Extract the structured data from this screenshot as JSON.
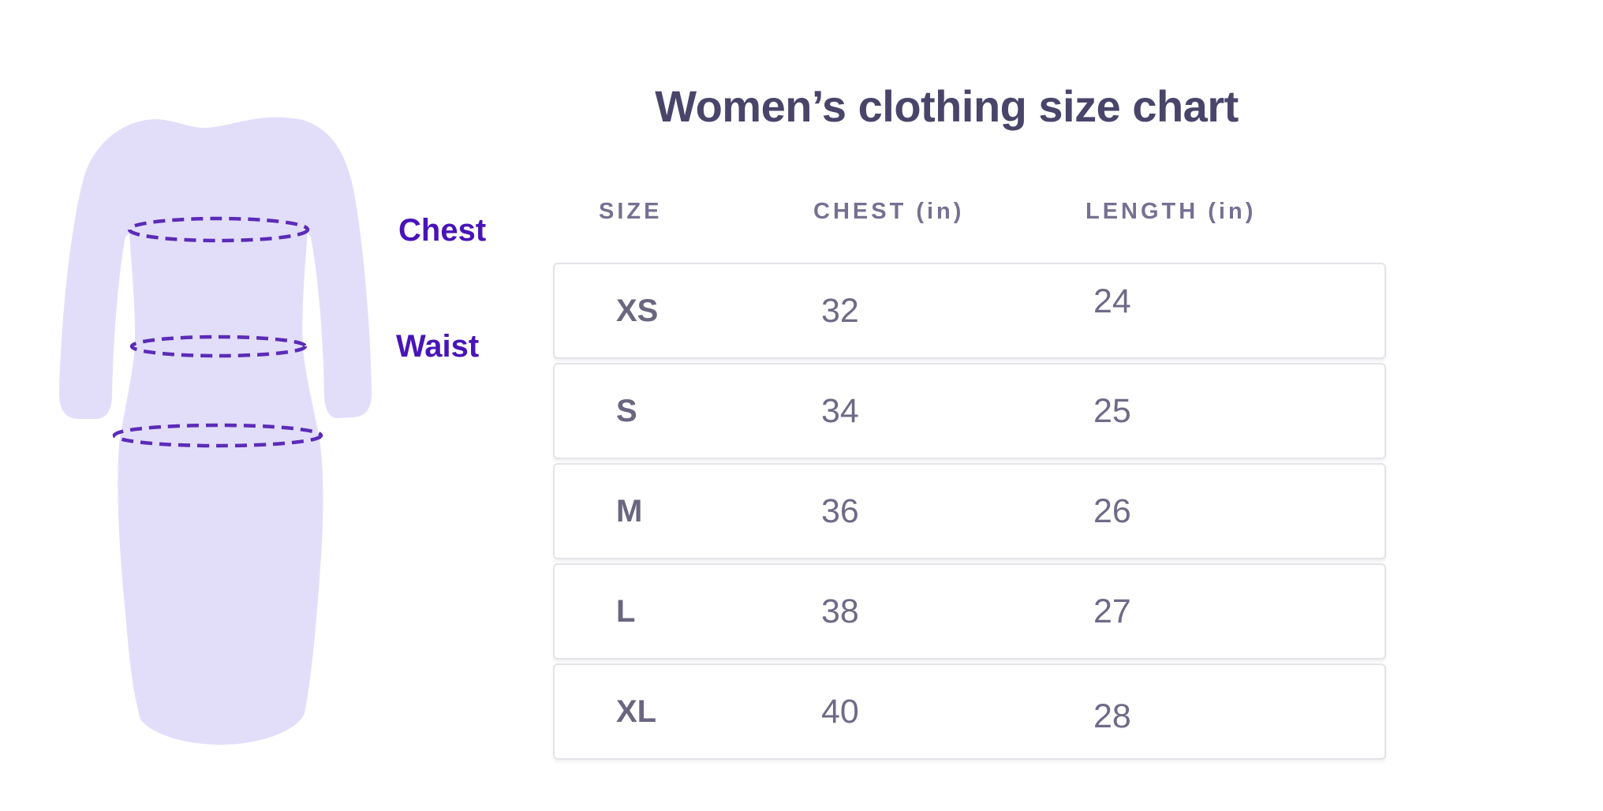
{
  "title": "Women’s clothing size chart",
  "figure": {
    "chest_label": "Chest",
    "waist_label": "Waist"
  },
  "table": {
    "headers": [
      "SIZE",
      "CHEST (in)",
      "LENGTH (in)"
    ],
    "rows": [
      {
        "size": "XS",
        "chest": "32",
        "length": "24"
      },
      {
        "size": "S",
        "chest": "34",
        "length": "25"
      },
      {
        "size": "M",
        "chest": "36",
        "length": "26"
      },
      {
        "size": "L",
        "chest": "38",
        "length": "27"
      },
      {
        "size": "XL",
        "chest": "40",
        "length": "28"
      }
    ]
  },
  "chart_data": {
    "type": "table",
    "title": "Women’s clothing size chart",
    "columns": [
      "SIZE",
      "CHEST (in)",
      "LENGTH (in)"
    ],
    "rows": [
      [
        "XS",
        32,
        24
      ],
      [
        "S",
        34,
        25
      ],
      [
        "M",
        36,
        26
      ],
      [
        "L",
        38,
        27
      ],
      [
        "XL",
        40,
        28
      ]
    ],
    "annotations": [
      "Chest measurement line",
      "Waist measurement line",
      "Hip measurement line (unlabeled)"
    ],
    "legend_position": "none",
    "grid": false
  },
  "colors": {
    "page_bg": "#ffffff",
    "title": "#49456a",
    "header_text": "#767091",
    "size_text": "#6b6680",
    "cell_text": "#6f6a87",
    "row_border": "#e4e3e8",
    "dress_fill": "#e2defa",
    "measure_line": "#5b2bb8",
    "label_text": "#4814b8"
  }
}
